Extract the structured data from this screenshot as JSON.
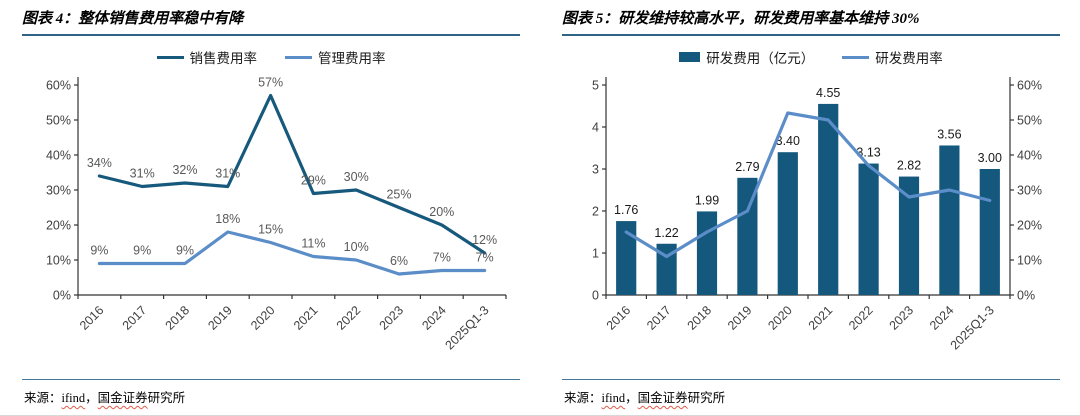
{
  "panels": [
    {
      "title": "图表 4：整体销售费用率稳中有降",
      "source": {
        "prefix": "来源：",
        "vendor": "ifind",
        "separator": "，",
        "institution": "国金证券",
        "suffix": "研究所"
      }
    },
    {
      "title": "图表 5：研发维持较高水平，研发费用率基本维持 30%",
      "source": {
        "prefix": "来源：",
        "vendor": "ifind",
        "separator": "，",
        "institution": "国金证券",
        "suffix": "研究所"
      }
    }
  ],
  "chart_data": [
    {
      "type": "line",
      "title": "整体销售费用率稳中有降",
      "categories": [
        "2016",
        "2017",
        "2018",
        "2019",
        "2020",
        "2021",
        "2022",
        "2023",
        "2024",
        "2025Q1-3"
      ],
      "left_axis": {
        "min": 0,
        "max": 60,
        "step": 10,
        "format": "percent"
      },
      "right_axis": null,
      "grid": false,
      "legend_position": "top",
      "series": [
        {
          "name": "销售费用率",
          "type": "line",
          "axis": "left",
          "color": "#17597c",
          "values": [
            34,
            31,
            32,
            31,
            57,
            29,
            30,
            25,
            20,
            12
          ],
          "data_labels": "percent",
          "label_color": "#595959"
        },
        {
          "name": "管理费用率",
          "type": "line",
          "axis": "left",
          "color": "#5b8dc9",
          "values": [
            9,
            9,
            9,
            18,
            15,
            11,
            10,
            6,
            7,
            7
          ],
          "data_labels": "percent",
          "label_color": "#595959"
        }
      ]
    },
    {
      "type": "combo",
      "title": "研发维持较高水平，研发费用率基本维持 30%",
      "categories": [
        "2016",
        "2017",
        "2018",
        "2019",
        "2020",
        "2021",
        "2022",
        "2023",
        "2024",
        "2025Q1-3"
      ],
      "left_axis": {
        "min": 0,
        "max": 5,
        "step": 1,
        "format": "plain"
      },
      "right_axis": {
        "min": 0,
        "max": 60,
        "step": 10,
        "format": "percent"
      },
      "grid": false,
      "legend_position": "top",
      "series": [
        {
          "name": "研发费用（亿元）",
          "type": "bar",
          "axis": "left",
          "color": "#14587d",
          "values": [
            1.76,
            1.22,
            1.99,
            2.79,
            3.4,
            4.55,
            3.13,
            2.82,
            3.56,
            3.0
          ],
          "data_labels": "fixed2",
          "label_color": "#1a1a1a"
        },
        {
          "name": "研发费用率",
          "type": "line",
          "axis": "right",
          "color": "#5b8dc9",
          "values": [
            18,
            11,
            18,
            24,
            52,
            50,
            37,
            28,
            30,
            27
          ],
          "data_labels": null,
          "label_color": "#595959"
        }
      ]
    }
  ]
}
